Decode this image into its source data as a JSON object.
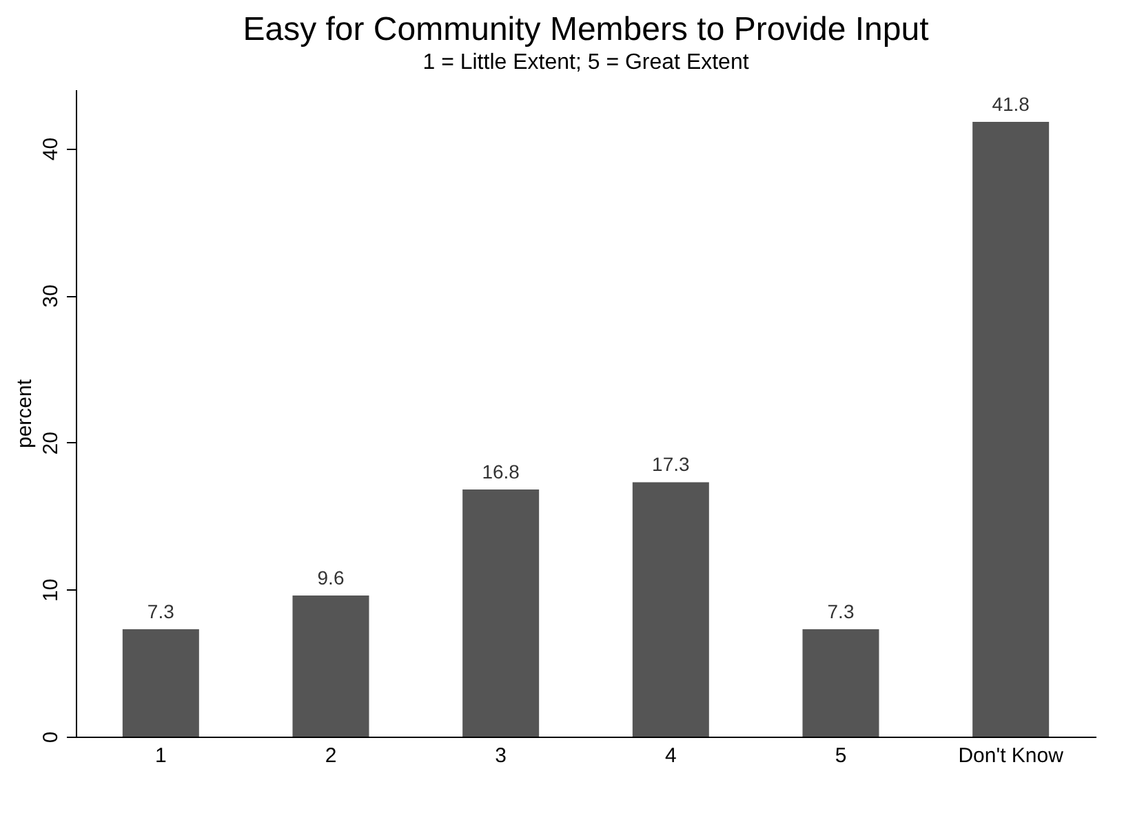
{
  "chart_data": {
    "type": "bar",
    "title": "Easy for Community Members to Provide Input",
    "subtitle": "1 = Little Extent; 5 = Great Extent",
    "ylabel": "percent",
    "categories": [
      "1",
      "2",
      "3",
      "4",
      "5",
      "Don't Know"
    ],
    "values": [
      7.3,
      9.6,
      16.8,
      17.3,
      7.3,
      41.8
    ],
    "color": "#555555",
    "ylim": [
      0,
      44
    ],
    "yticks": [
      0,
      10,
      20,
      30,
      40
    ],
    "grid": false,
    "data_labels": true
  }
}
